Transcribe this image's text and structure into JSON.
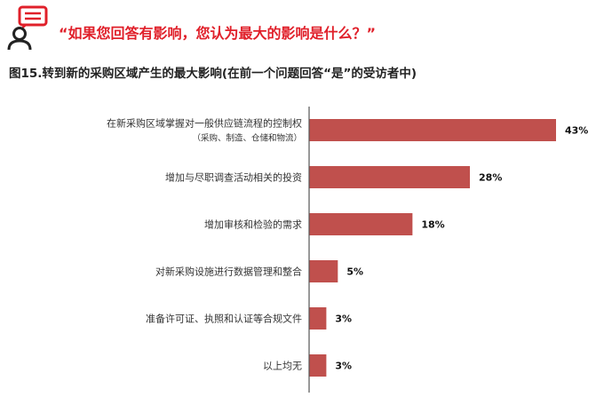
{
  "header": {
    "icon": "survey-person-icon",
    "question": "“如果您回答有影响，您认为最大的影响是什么？”",
    "figure_title": "图15.转到新的采购区域产生的最大影响(在前一个问题回答“是”的受访者中)"
  },
  "colors": {
    "accent": "#e0202a",
    "bar": "#c0504d",
    "axis": "#555555"
  },
  "chart_data": {
    "type": "bar",
    "orientation": "horizontal",
    "categories": [
      "在新采购区域掌握对一般供应链流程的控制权",
      "增加与尽职调查活动相关的投资",
      "增加审核和检验的需求",
      "对新采购设施进行数据管理和整合",
      "准备许可证、执照和认证等合规文件",
      "以上均无"
    ],
    "category_sublabels": [
      "（采购、制造、仓储和物流）",
      "",
      "",
      "",
      "",
      ""
    ],
    "values": [
      43,
      28,
      18,
      5,
      3,
      3
    ],
    "value_labels": [
      "43%",
      "28%",
      "18%",
      "5%",
      "3%",
      "3%"
    ],
    "unit": "%",
    "xlim": [
      0,
      43
    ],
    "grid": false,
    "legend": "none"
  }
}
